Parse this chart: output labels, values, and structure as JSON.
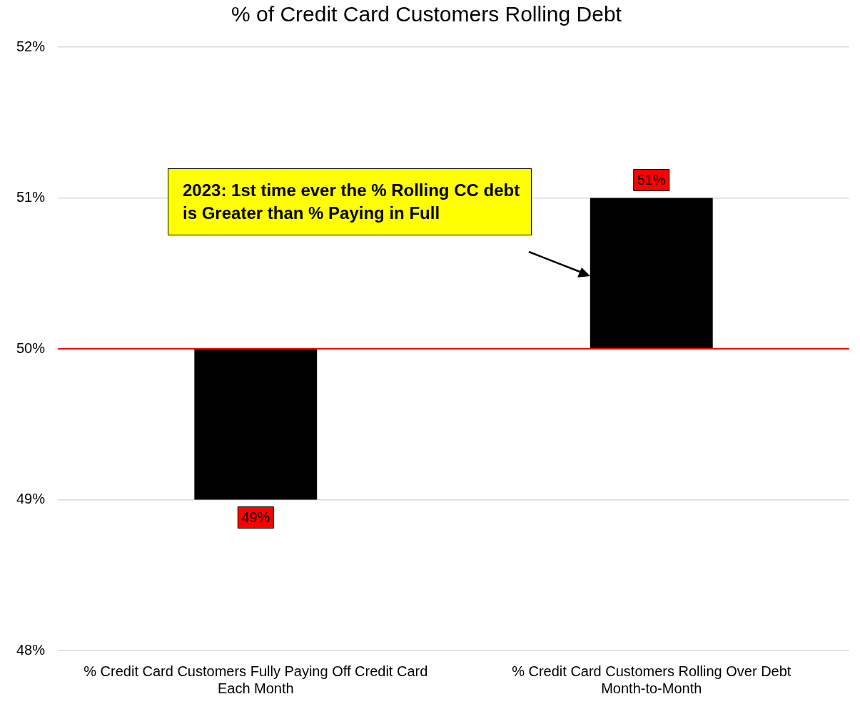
{
  "chart_data": {
    "type": "bar",
    "title": "% of Credit Card Customers Rolling Debt",
    "categories": [
      "% Credit Card Customers Fully Paying Off Credit Card Each Month",
      "% Credit Card Customers Rolling Over Debt Month-to-Month"
    ],
    "values": [
      -1,
      1
    ],
    "base": [
      50,
      50
    ],
    "color": "#000000",
    "value_labels": [
      "49%",
      "51%"
    ],
    "ylim": [
      48,
      52
    ],
    "yticks": [
      {
        "value": 48,
        "label": "48%"
      },
      {
        "value": 49,
        "label": "49%"
      },
      {
        "value": 50,
        "label": "50%"
      },
      {
        "value": 51,
        "label": "51%"
      },
      {
        "value": 52,
        "label": "52%"
      }
    ],
    "grid": "y",
    "legend": false,
    "ref_lines": [
      {
        "axis": "y",
        "value": 50,
        "color": "#ff0000"
      }
    ],
    "annotations": [
      "2023: 1st time ever the % Rolling CC debt is Greater than % Paying in Full"
    ]
  }
}
